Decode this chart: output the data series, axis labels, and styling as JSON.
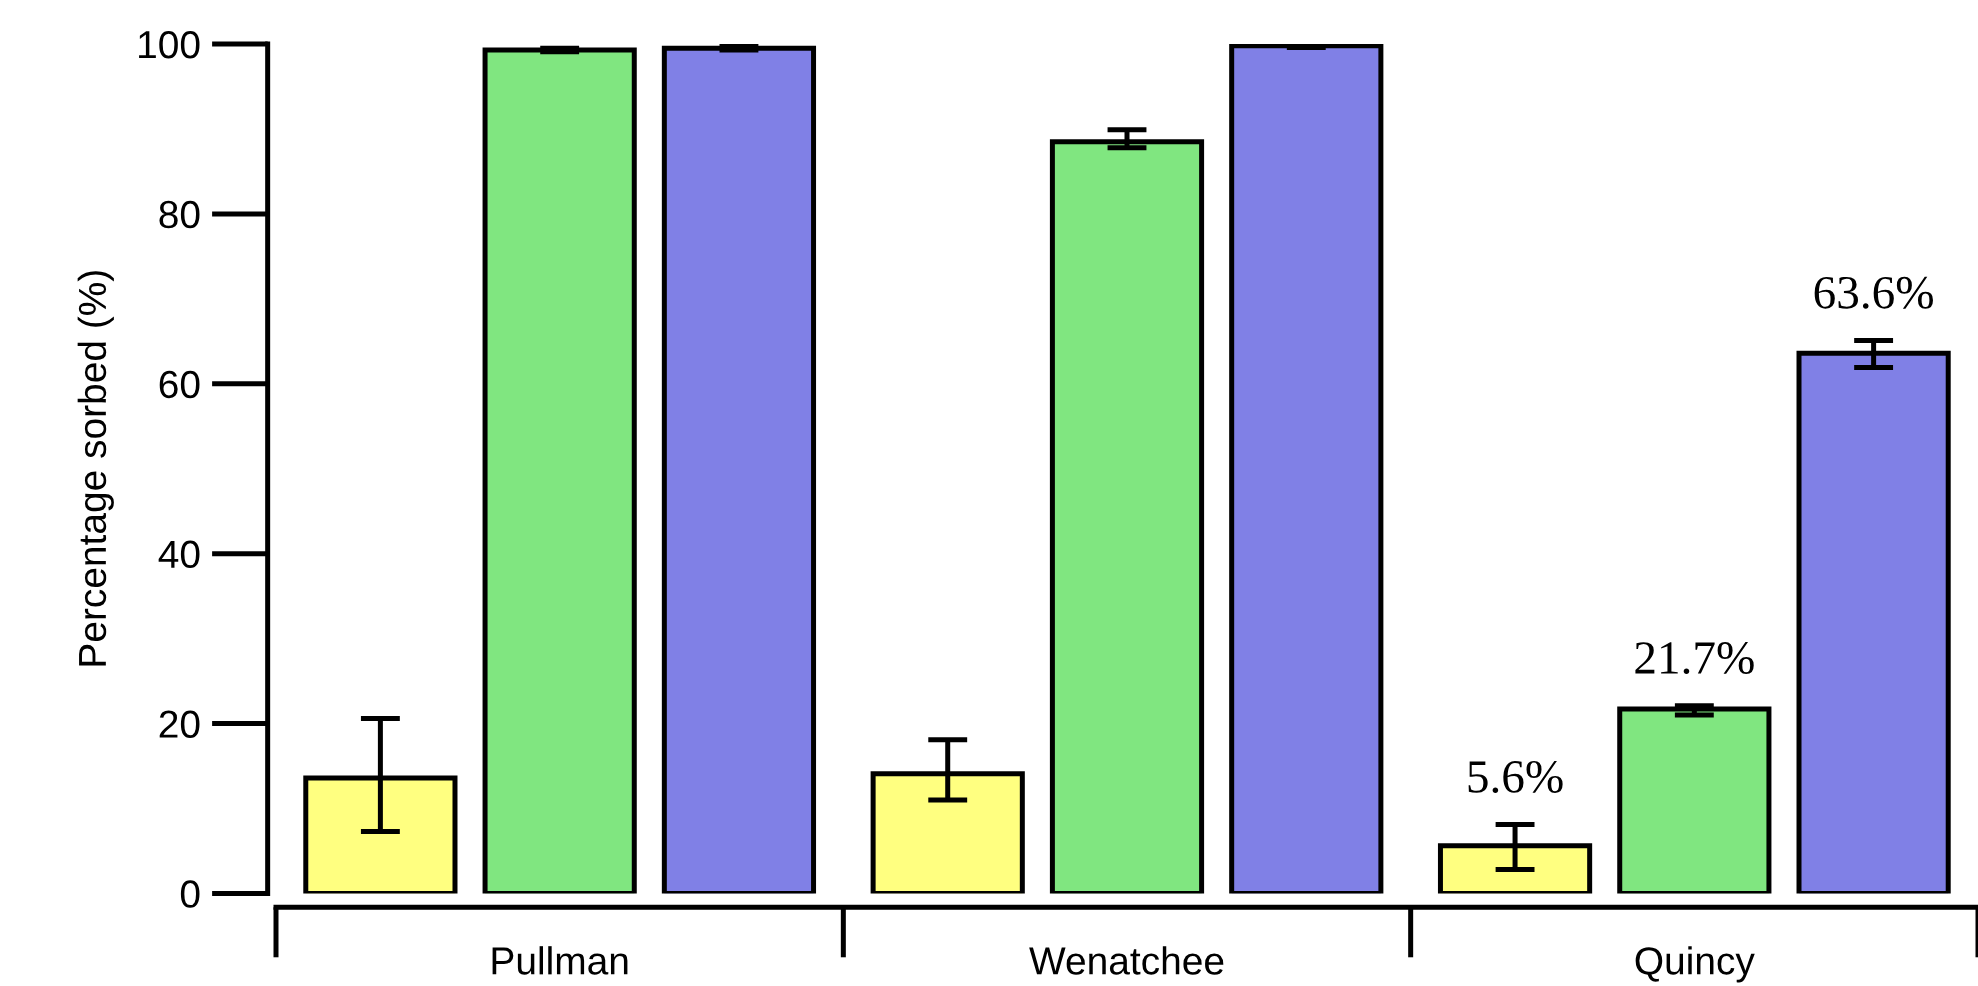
{
  "chart_data": {
    "type": "bar",
    "ylabel": "Percentage sorbed (%)",
    "categories": [
      "Pullman",
      "Wenatchee",
      "Quincy"
    ],
    "series": [
      {
        "color": "#ffff80",
        "values": [
          13.6,
          14.1,
          5.6
        ],
        "errors": [
          [
            7.3,
            20.6
          ],
          [
            11.0,
            18.1
          ],
          [
            2.8,
            8.1
          ]
        ],
        "value_labels": [
          null,
          null,
          "5.6%"
        ]
      },
      {
        "color": "#80e680",
        "values": [
          99.3,
          88.5,
          21.7
        ],
        "errors": [
          [
            99.1,
            99.5
          ],
          [
            87.8,
            89.9
          ],
          [
            21.0,
            22.1
          ]
        ],
        "value_labels": [
          null,
          null,
          "21.7%"
        ]
      },
      {
        "color": "#8080e6",
        "values": [
          99.5,
          99.8,
          63.6
        ],
        "errors": [
          [
            99.3,
            99.7
          ],
          [
            99.6,
            100.0
          ],
          [
            61.9,
            65.1
          ]
        ],
        "value_labels": [
          null,
          null,
          "63.6%"
        ]
      }
    ],
    "ylim": [
      0,
      100
    ],
    "yticks": [
      0,
      20,
      40,
      60,
      80,
      100
    ],
    "grid": false,
    "legend": false
  }
}
